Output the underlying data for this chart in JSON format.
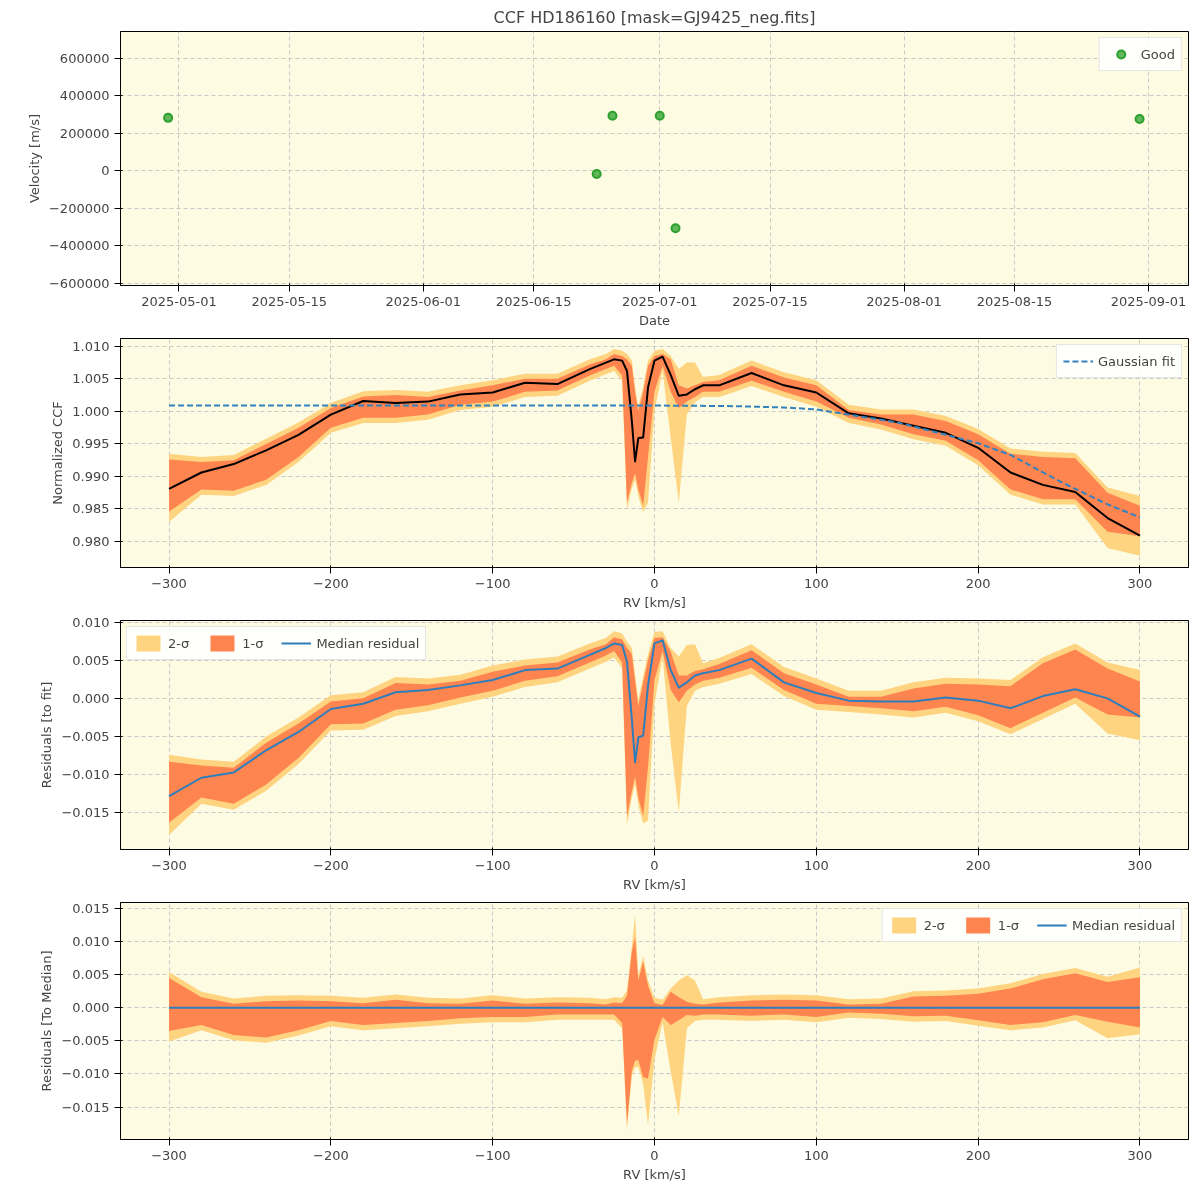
{
  "chart_data": [
    {
      "type": "scatter",
      "title": "CCF HD186160 [mask=GJ9425_neg.fits]",
      "xlabel": "Date",
      "ylabel": "Velocity [m/s]",
      "x": [
        "2025-04-29T15:00",
        "2025-06-23",
        "2025-06-25",
        "2025-07-01",
        "2025-07-03",
        "2025-08-30T21:00"
      ],
      "series": [
        {
          "name": "Good",
          "color": "#2ca02c",
          "values": [
            283000,
            -17000,
            294000,
            294000,
            -306000,
            277000
          ]
        }
      ],
      "xlim": [
        "2025-04-23T14:00",
        "2025-09-06T02:00"
      ],
      "xticks": [
        "2025-05-01",
        "2025-05-15",
        "2025-06-01",
        "2025-06-15",
        "2025-07-01",
        "2025-07-15",
        "2025-08-01",
        "2025-08-15",
        "2025-09-01"
      ],
      "ylim": [
        -612000,
        744000
      ],
      "yticks": [
        {
          "value": -600000,
          "label": "−600000"
        },
        {
          "value": -400000,
          "label": "−400000"
        },
        {
          "value": -200000,
          "label": "−200000"
        },
        0,
        200000,
        400000,
        600000
      ],
      "grid": true,
      "legend": "top right",
      "marker": "circle"
    },
    {
      "type": "line",
      "xlabel": "RV [km/s]",
      "ylabel": "Normalized CCF",
      "x": [
        -300,
        -280,
        -260,
        -240,
        -220,
        -200,
        -180,
        -160,
        -140,
        -120,
        -100,
        -80,
        -60,
        -40,
        -30,
        -25,
        -20,
        -17,
        -14,
        -12,
        -10,
        -7,
        -4,
        0,
        5,
        10,
        15,
        20,
        25,
        30,
        40,
        60,
        80,
        100,
        120,
        140,
        160,
        180,
        200,
        220,
        240,
        260,
        280,
        300
      ],
      "series": [
        {
          "type": "line",
          "values": [
            null,
            null,
            null,
            null,
            null,
            null,
            null,
            null,
            null,
            null,
            null,
            null,
            null,
            null,
            null,
            null,
            null,
            null,
            null,
            null,
            null,
            null,
            null,
            null,
            null,
            null,
            null,
            null,
            null,
            null,
            null,
            null,
            null,
            null,
            null,
            null,
            null,
            null,
            null,
            null,
            null,
            null,
            null,
            null
          ],
          "color": "#fed481",
          "lower": [
            0.983,
            0.9872,
            0.987,
            0.9887,
            0.9922,
            0.9967,
            0.9982,
            0.9982,
            0.9987,
            1.0002,
            1.0007,
            1.0022,
            1.0024,
            1.0047,
            1.0057,
            1.0062,
            1.0047,
            0.9848,
            0.9882,
            0.9895,
            0.987,
            0.9845,
            0.986,
            1.0,
            1.0062,
            0.996,
            0.986,
            0.9995,
            1.0014,
            1.0022,
            1.0022,
            1.0039,
            1.0022,
            1.0007,
            0.9982,
            0.9972,
            0.9957,
            0.9947,
            0.9917,
            0.9872,
            0.9857,
            0.9857,
            0.979,
            0.9778
          ],
          "upper": [
            0.9935,
            0.993,
            0.9933,
            0.9958,
            0.9983,
            1.0013,
            1.0031,
            1.0033,
            1.003,
            1.004,
            1.0048,
            1.0058,
            1.0058,
            1.008,
            1.0088,
            1.0096,
            1.0093,
            1.0088,
            1.0078,
            1.0038,
            1.0008,
            1.0038,
            1.0078,
            1.0093,
            1.0096,
            1.0085,
            1.0065,
            1.0075,
            1.0075,
            1.0053,
            1.0056,
            1.0078,
            1.006,
            1.0048,
            1.001,
            1.0003,
            1.0003,
            0.9993,
            0.9973,
            0.9943,
            0.9938,
            0.9936,
            0.9883,
            0.987
          ]
        },
        {
          "type": "line",
          "values": [
            null,
            null,
            null,
            null,
            null,
            null,
            null,
            null,
            null,
            null,
            null,
            null,
            null,
            null,
            null,
            null,
            null,
            null,
            null,
            null,
            null,
            null,
            null,
            null,
            null,
            null,
            null,
            null,
            null,
            null,
            null,
            null,
            null,
            null,
            null,
            null,
            null,
            null,
            null,
            null,
            null,
            null,
            null,
            null
          ],
          "color": "#fe8450",
          "lower": [
            0.9846,
            0.988,
            0.9878,
            0.9895,
            0.993,
            0.9975,
            0.999,
            0.999,
            0.9995,
            1.001,
            1.0015,
            1.003,
            1.0032,
            1.0055,
            1.0065,
            1.007,
            1.0055,
            0.986,
            0.989,
            0.9905,
            0.988,
            0.9855,
            0.993,
            1.003,
            1.007,
            1.003,
            1.0005,
            1.0015,
            1.0022,
            1.003,
            1.003,
            1.0047,
            1.003,
            1.0015,
            0.999,
            0.998,
            0.9965,
            0.9955,
            0.9925,
            0.988,
            0.9865,
            0.9865,
            0.9815,
            0.9808
          ],
          "upper": [
            0.9926,
            0.9922,
            0.9925,
            0.995,
            0.9975,
            1.0005,
            1.0023,
            1.0025,
            1.0022,
            1.0032,
            1.004,
            1.005,
            1.005,
            1.0072,
            1.008,
            1.0088,
            1.0085,
            1.008,
            1.007,
            1.003,
            1.0,
            1.003,
            1.007,
            1.0085,
            1.0088,
            1.008,
            1.004,
            1.0035,
            1.004,
            1.0045,
            1.0048,
            1.007,
            1.0052,
            1.004,
            1.0002,
            0.9995,
            0.9995,
            0.9985,
            0.9965,
            0.9935,
            0.993,
            0.9928,
            0.9875,
            0.9855
          ]
        },
        {
          "type": "line",
          "color": "#000000",
          "values": [
            0.9881,
            0.9906,
            0.9919,
            0.994,
            0.9964,
            0.9995,
            1.0016,
            1.0013,
            1.0015,
            1.0026,
            1.0029,
            1.0044,
            1.0042,
            1.0065,
            1.0075,
            1.008,
            1.0078,
            1.0062,
            0.9985,
            0.9923,
            0.9959,
            0.996,
            1.0037,
            1.0078,
            1.0084,
            1.0056,
            1.0024,
            1.0026,
            1.0034,
            1.004,
            1.004,
            1.0059,
            1.004,
            1.0029,
            0.9997,
            0.9989,
            0.9978,
            0.9967,
            0.9944,
            0.9906,
            0.9887,
            0.9876,
            0.9836,
            0.9809
          ]
        },
        {
          "type": "line",
          "name": "Gaussian fit",
          "color": "#3282be",
          "line_style": "dashed",
          "x": [
            -300,
            -200,
            -100,
            0,
            50,
            80,
            100,
            120,
            150,
            180,
            200,
            220,
            250,
            280,
            300
          ],
          "values": [
            1.0009,
            1.0009,
            1.0009,
            1.0009,
            1.0008,
            1.0006,
            1.0003,
            0.9995,
            0.9983,
            0.9964,
            0.9951,
            0.9933,
            0.9893,
            0.9857,
            0.9837
          ]
        }
      ],
      "xlim": [
        -330,
        330
      ],
      "xticks": [
        {
          "value": -300,
          "label": "−300"
        },
        {
          "value": -200,
          "label": "−200"
        },
        {
          "value": -100,
          "label": "−100"
        },
        0,
        100,
        200,
        300
      ],
      "ylim": [
        0.976,
        1.0112
      ],
      "yticks": [
        {
          "value": 0.98,
          "label": "0.980"
        },
        {
          "value": 0.985,
          "label": "0.985"
        },
        {
          "value": 0.99,
          "label": "0.990"
        },
        {
          "value": 0.995,
          "label": "0.995"
        },
        {
          "value": 1.0,
          "label": "1.000"
        },
        {
          "value": 1.005,
          "label": "1.005"
        },
        {
          "value": 1.01,
          "label": "1.010"
        }
      ],
      "grid": true,
      "legend": "top right"
    },
    {
      "type": "line",
      "xlabel": "RV [km/s]",
      "ylabel": "Residuals [to fit]",
      "x": [
        -300,
        -280,
        -260,
        -240,
        -220,
        -200,
        -180,
        -160,
        -140,
        -120,
        -100,
        -80,
        -60,
        -40,
        -30,
        -25,
        -20,
        -17,
        -14,
        -12,
        -10,
        -7,
        -4,
        0,
        5,
        10,
        15,
        20,
        25,
        30,
        40,
        60,
        80,
        100,
        120,
        140,
        160,
        180,
        200,
        220,
        240,
        260,
        280,
        300
      ],
      "series": [
        {
          "type": "line",
          "name": "2-σ",
          "values": [
            null,
            null,
            null,
            null,
            null,
            null,
            null,
            null,
            null,
            null,
            null,
            null,
            null,
            null,
            null,
            null,
            null,
            null,
            null,
            null,
            null,
            null,
            null,
            null,
            null,
            null,
            null,
            null,
            null,
            null,
            null,
            null,
            null,
            null,
            null,
            null,
            null,
            null,
            null,
            null,
            null,
            null,
            null,
            null
          ],
          "color": "#fed481",
          "lower": [
            -0.0179,
            -0.0138,
            -0.0146,
            -0.0121,
            -0.0086,
            -0.0042,
            -0.0041,
            -0.0023,
            -0.0017,
            -0.0007,
            0.0002,
            0.0015,
            0.0021,
            0.0039,
            0.0048,
            0.0054,
            0.0039,
            -0.0166,
            -0.013,
            -0.0112,
            -0.014,
            -0.0164,
            -0.016,
            -0.0006,
            0.0054,
            -0.0059,
            -0.015,
            -0.001,
            0.001,
            0.0015,
            0.0019,
            0.0032,
            0.0003,
            -0.0015,
            -0.0018,
            -0.0021,
            -0.0025,
            -0.0019,
            -0.003,
            -0.0047,
            -0.0027,
            -0.0007,
            -0.0046,
            -0.0055
          ],
          "upper": [
            -0.0074,
            -0.008,
            -0.0083,
            -0.005,
            -0.0025,
            0.0004,
            0.0008,
            0.0028,
            0.0026,
            0.0031,
            0.0043,
            0.0051,
            0.0055,
            0.0072,
            0.0079,
            0.0088,
            0.0085,
            0.0074,
            0.0066,
            0.0031,
            -0.0002,
            0.0029,
            0.0058,
            0.0087,
            0.0088,
            0.0066,
            0.0055,
            0.007,
            0.0071,
            0.0046,
            0.0053,
            0.0071,
            0.0041,
            0.0026,
            0.001,
            0.001,
            0.0021,
            0.0027,
            0.0026,
            0.0024,
            0.0054,
            0.0072,
            0.0047,
            0.0037
          ]
        },
        {
          "type": "line",
          "name": "1-σ",
          "values": [
            null,
            null,
            null,
            null,
            null,
            null,
            null,
            null,
            null,
            null,
            null,
            null,
            null,
            null,
            null,
            null,
            null,
            null,
            null,
            null,
            null,
            null,
            null,
            null,
            null,
            null,
            null,
            null,
            null,
            null,
            null,
            null,
            null,
            null,
            null,
            null,
            null,
            null,
            null,
            null,
            null,
            null,
            null,
            null
          ],
          "color": "#fe8450",
          "lower": [
            -0.0163,
            -0.013,
            -0.0138,
            -0.0113,
            -0.0078,
            -0.0034,
            -0.0033,
            -0.0015,
            -0.0009,
            0.0001,
            0.001,
            0.0023,
            0.0029,
            0.0047,
            0.0056,
            0.0062,
            0.0047,
            -0.0154,
            -0.0122,
            -0.0102,
            -0.013,
            -0.0154,
            -0.009,
            0.0024,
            0.0062,
            0.0011,
            -0.0005,
            0.001,
            0.0018,
            0.0023,
            0.0027,
            0.004,
            0.0011,
            -0.0007,
            -0.001,
            -0.0013,
            -0.0017,
            -0.0011,
            -0.0022,
            -0.0039,
            -0.0019,
            0.0001,
            -0.0021,
            -0.0025
          ],
          "upper": [
            -0.0083,
            -0.0088,
            -0.0091,
            -0.0058,
            -0.0033,
            -0.0004,
            0.0,
            0.002,
            0.0018,
            0.0023,
            0.0035,
            0.0043,
            0.0047,
            0.0064,
            0.0071,
            0.008,
            0.0077,
            0.0066,
            0.0058,
            0.0023,
            -0.001,
            0.0021,
            0.005,
            0.0079,
            0.008,
            0.0061,
            0.003,
            0.003,
            0.0036,
            0.0038,
            0.0045,
            0.0063,
            0.0033,
            0.0018,
            0.0002,
            0.0002,
            0.0013,
            0.0019,
            0.0018,
            0.0016,
            0.0046,
            0.0064,
            0.0039,
            0.0022
          ]
        },
        {
          "type": "line",
          "name": "Median residual",
          "color": "#2e7ebc",
          "values": [
            -0.0128,
            -0.0104,
            -0.0097,
            -0.0068,
            -0.0044,
            -0.0014,
            -0.0007,
            0.0008,
            0.0011,
            0.0017,
            0.0024,
            0.0037,
            0.0039,
            0.0057,
            0.0066,
            0.0072,
            0.007,
            0.0048,
            -0.0027,
            -0.0084,
            -0.0051,
            -0.0049,
            0.0017,
            0.0072,
            0.0076,
            0.0037,
            0.0014,
            0.0021,
            0.003,
            0.0033,
            0.0037,
            0.0052,
            0.0021,
            0.0007,
            -0.0003,
            -0.0004,
            -0.0004,
            0.0001,
            -0.0003,
            -0.0013,
            0.0003,
            0.0012,
            0.0,
            -0.0024
          ]
        }
      ],
      "xlim": [
        -330,
        330
      ],
      "xticks": [
        {
          "value": -300,
          "label": "−300"
        },
        {
          "value": -200,
          "label": "−200"
        },
        {
          "value": -100,
          "label": "−100"
        },
        0,
        100,
        200,
        300
      ],
      "ylim": [
        -0.0198,
        0.0102
      ],
      "yticks": [
        {
          "value": -0.015,
          "label": "−0.015"
        },
        {
          "value": -0.01,
          "label": "−0.010"
        },
        {
          "value": -0.005,
          "label": "−0.005"
        },
        {
          "value": 0,
          "label": "0.000"
        },
        {
          "value": 0.005,
          "label": "0.005"
        },
        {
          "value": 0.01,
          "label": "0.010"
        }
      ],
      "grid": true,
      "legend": "top left"
    },
    {
      "type": "line",
      "xlabel": "RV [km/s]",
      "ylabel": "Residuals [To Median]",
      "x": [
        -300,
        -280,
        -260,
        -240,
        -220,
        -200,
        -180,
        -160,
        -140,
        -120,
        -100,
        -80,
        -60,
        -40,
        -30,
        -25,
        -20,
        -17,
        -14,
        -12,
        -10,
        -7,
        -4,
        0,
        5,
        10,
        15,
        20,
        25,
        30,
        40,
        60,
        80,
        100,
        120,
        140,
        160,
        180,
        200,
        220,
        240,
        260,
        280,
        300
      ],
      "series": [
        {
          "type": "line",
          "name": "2-σ",
          "values": [
            null,
            null,
            null,
            null,
            null,
            null,
            null,
            null,
            null,
            null,
            null,
            null,
            null,
            null,
            null,
            null,
            null,
            null,
            null,
            null,
            null,
            null,
            null,
            null,
            null,
            null,
            null,
            null,
            null,
            null,
            null,
            null,
            null,
            null,
            null,
            null,
            null,
            null,
            null,
            null,
            null,
            null,
            null,
            null
          ],
          "color": "#fed481",
          "lower": [
            -0.0051,
            -0.0034,
            -0.0049,
            -0.0053,
            -0.0042,
            -0.0028,
            -0.0034,
            -0.0031,
            -0.0028,
            -0.0024,
            -0.0022,
            -0.0022,
            -0.0018,
            -0.0018,
            -0.0018,
            -0.0018,
            -0.0031,
            -0.0185,
            -0.0103,
            -0.009,
            -0.0089,
            -0.0115,
            -0.0177,
            -0.0078,
            -0.0022,
            -0.0096,
            -0.0164,
            -0.0031,
            -0.002,
            -0.0018,
            -0.0018,
            -0.002,
            -0.0018,
            -0.0022,
            -0.0015,
            -0.0017,
            -0.0021,
            -0.002,
            -0.0027,
            -0.0034,
            -0.003,
            -0.0019,
            -0.0046,
            -0.004
          ],
          "upper": [
            0.0054,
            0.0024,
            0.0014,
            0.0018,
            0.0019,
            0.0018,
            0.0015,
            0.002,
            0.0015,
            0.0014,
            0.0019,
            0.0014,
            0.0016,
            0.0015,
            0.0013,
            0.0016,
            0.0015,
            0.0026,
            0.0093,
            0.014,
            0.0049,
            0.0078,
            0.0041,
            0.0015,
            0.0012,
            0.0029,
            0.0041,
            0.0049,
            0.0041,
            0.0013,
            0.0016,
            0.0019,
            0.002,
            0.0019,
            0.0013,
            0.0014,
            0.0025,
            0.0026,
            0.0029,
            0.0037,
            0.0051,
            0.006,
            0.0047,
            0.0061
          ]
        },
        {
          "type": "line",
          "name": "1-σ",
          "values": [
            null,
            null,
            null,
            null,
            null,
            null,
            null,
            null,
            null,
            null,
            null,
            null,
            null,
            null,
            null,
            null,
            null,
            null,
            null,
            null,
            null,
            null,
            null,
            null,
            null,
            null,
            null,
            null,
            null,
            null,
            null,
            null,
            null,
            null,
            null,
            null,
            null,
            null,
            null,
            null,
            null,
            null,
            null,
            null
          ],
          "color": "#fe8450",
          "lower": [
            -0.0035,
            -0.0026,
            -0.0041,
            -0.0045,
            -0.0034,
            -0.002,
            -0.0026,
            -0.0023,
            -0.002,
            -0.0016,
            -0.0014,
            -0.0014,
            -0.001,
            -0.001,
            -0.001,
            -0.001,
            -0.0023,
            -0.0175,
            -0.0095,
            -0.008,
            -0.0079,
            -0.0105,
            -0.0107,
            -0.0048,
            -0.0014,
            -0.0026,
            -0.0019,
            -0.0011,
            -0.0012,
            -0.001,
            -0.001,
            -0.0012,
            -0.001,
            -0.0014,
            -0.0007,
            -0.0009,
            -0.0013,
            -0.0012,
            -0.0019,
            -0.0026,
            -0.0022,
            -0.0011,
            -0.0021,
            -0.003
          ],
          "upper": [
            0.0045,
            0.0016,
            0.0006,
            0.001,
            0.0011,
            0.001,
            0.0007,
            0.0012,
            0.0007,
            0.0006,
            0.0011,
            0.0006,
            0.0008,
            0.0007,
            0.0005,
            0.0008,
            0.0007,
            0.0018,
            0.0085,
            0.0107,
            0.0041,
            0.007,
            0.0033,
            0.0007,
            0.0004,
            0.0024,
            0.0016,
            0.0009,
            0.0006,
            0.0005,
            0.0008,
            0.0011,
            0.0012,
            0.0011,
            0.0005,
            0.0006,
            0.0017,
            0.0018,
            0.0021,
            0.0029,
            0.0043,
            0.0052,
            0.0039,
            0.0046
          ]
        },
        {
          "type": "line",
          "name": "Median residual",
          "color": "#2e7ebc",
          "values": [
            0,
            0,
            0,
            0,
            0,
            0,
            0,
            0,
            0,
            0,
            0,
            0,
            0,
            0,
            0,
            0,
            0,
            0,
            0,
            0,
            0,
            0,
            0,
            0,
            0,
            0,
            0,
            0,
            0,
            0,
            0,
            0,
            0,
            0,
            0,
            0,
            0,
            0,
            0,
            0,
            0,
            0,
            0,
            0
          ]
        }
      ],
      "xlim": [
        -330,
        330
      ],
      "xticks": [
        {
          "value": -300,
          "label": "−300"
        },
        {
          "value": -200,
          "label": "−200"
        },
        {
          "value": -100,
          "label": "−100"
        },
        0,
        100,
        200,
        300
      ],
      "ylim": [
        -0.0199,
        0.0159
      ],
      "yticks": [
        {
          "value": -0.015,
          "label": "−0.015"
        },
        {
          "value": -0.01,
          "label": "−0.010"
        },
        {
          "value": -0.005,
          "label": "−0.005"
        },
        {
          "value": 0,
          "label": "0.000"
        },
        {
          "value": 0.005,
          "label": "0.005"
        },
        {
          "value": 0.01,
          "label": "0.010"
        },
        {
          "value": 0.015,
          "label": "0.015"
        }
      ],
      "grid": true,
      "legend": "top right"
    }
  ]
}
